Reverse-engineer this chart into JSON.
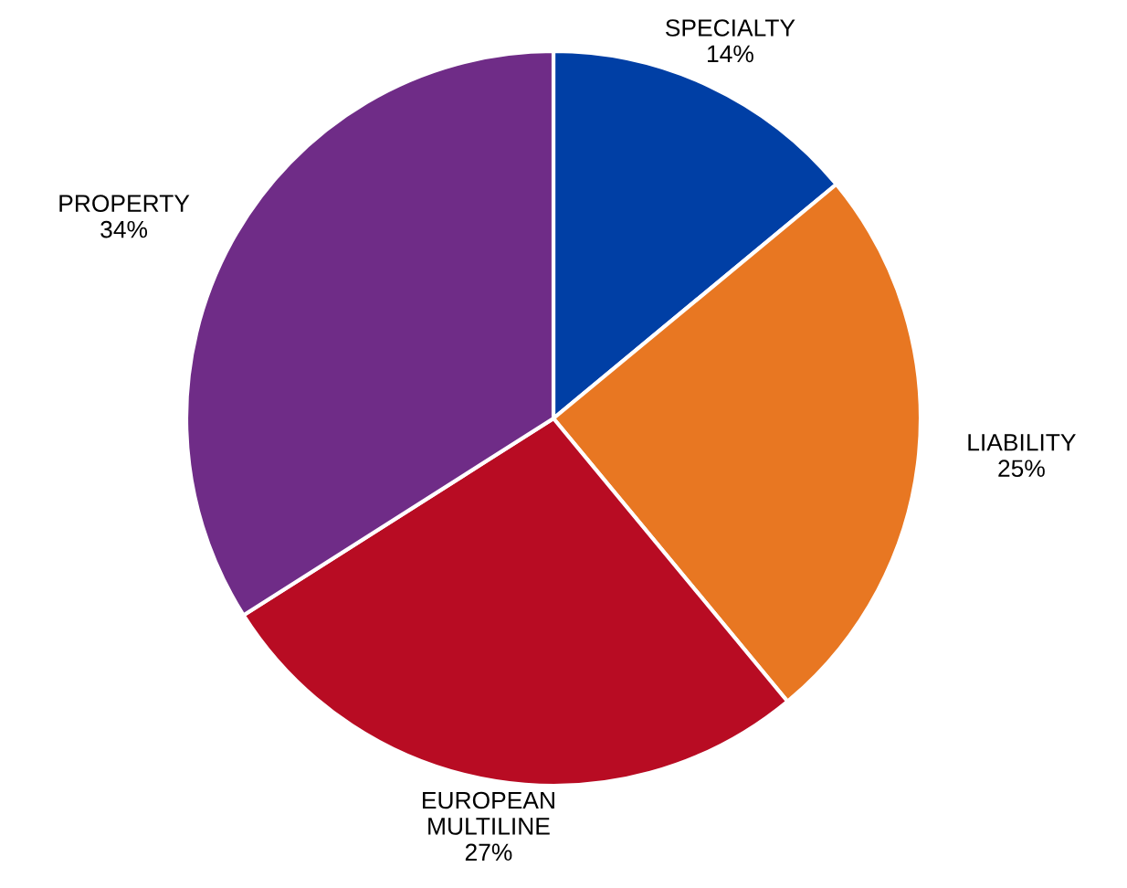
{
  "chart_data": {
    "type": "pie",
    "categories": [
      "SPECIALTY",
      "LIABILITY",
      "EUROPEAN\nMULTILINE",
      "PROPERTY"
    ],
    "values": [
      14,
      25,
      27,
      34
    ],
    "value_labels": [
      "14%",
      "25%",
      "27%",
      "34%"
    ],
    "colors": [
      "#003fa5",
      "#e87722",
      "#b80c23",
      "#6f2c87"
    ]
  }
}
